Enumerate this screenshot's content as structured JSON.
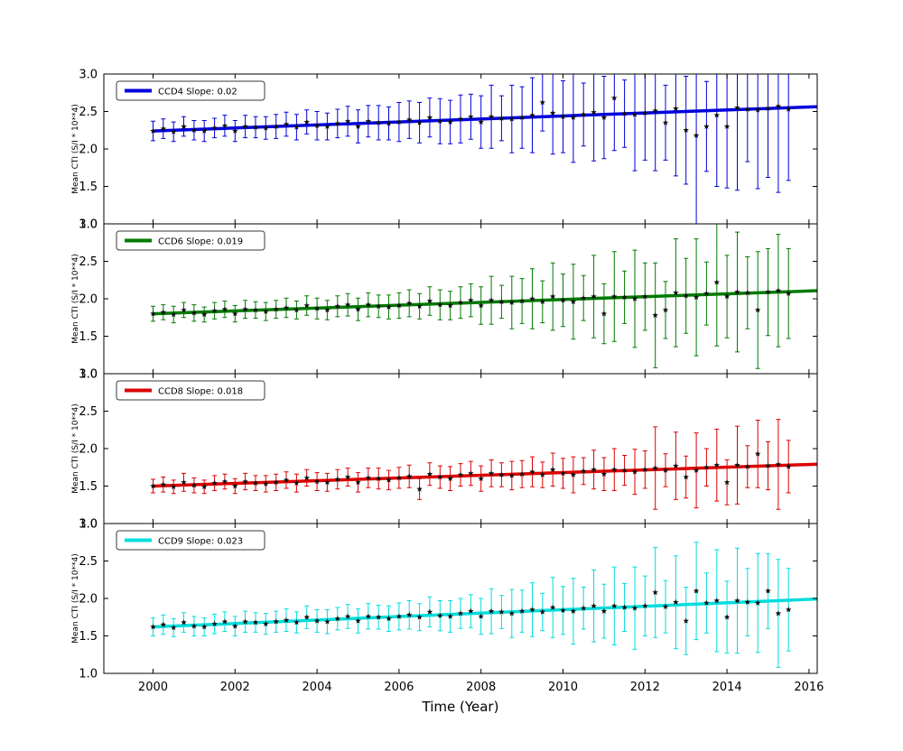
{
  "figure": {
    "xlabel": "Time (Year)",
    "ylabel": "Mean CTI (S/I * 10**4)"
  },
  "chart_data": {
    "type": "line",
    "description": "Four stacked panels of mean CTI vs time with error bars, black star markers and a colored linear fit per CCD",
    "layout": {
      "xlim": [
        1998.8,
        2016.2
      ],
      "ylim": [
        1.0,
        3.0
      ],
      "x_ticks": [
        2000,
        2002,
        2004,
        2006,
        2008,
        2010,
        2012,
        2014,
        2016
      ],
      "x_tick_labels": [
        "2000",
        "2002",
        "2004",
        "2006",
        "2008",
        "2010",
        "2012",
        "2014",
        "2016"
      ],
      "y_ticks": [
        1.0,
        1.5,
        2.0,
        2.5,
        3.0
      ],
      "y_tick_labels": [
        "1.0",
        "1.5",
        "2.0",
        "2.5",
        "3.0"
      ],
      "xlabel": "Time (Year)",
      "ylabel": "Mean CTI (S/I * 10**4)",
      "legend_position": "upper left",
      "grid": false,
      "marker": "black-star",
      "axis_color": "#000000"
    },
    "x": [
      2000.0,
      2000.25,
      2000.5,
      2000.75,
      2001.0,
      2001.25,
      2001.5,
      2001.75,
      2002.0,
      2002.25,
      2002.5,
      2002.75,
      2003.0,
      2003.25,
      2003.5,
      2003.75,
      2004.0,
      2004.25,
      2004.5,
      2004.75,
      2005.0,
      2005.25,
      2005.5,
      2005.75,
      2006.0,
      2006.25,
      2006.5,
      2006.75,
      2007.0,
      2007.25,
      2007.5,
      2007.75,
      2008.0,
      2008.25,
      2008.5,
      2008.75,
      2009.0,
      2009.25,
      2009.5,
      2009.75,
      2010.0,
      2010.25,
      2010.5,
      2010.75,
      2011.0,
      2011.25,
      2011.5,
      2011.75,
      2012.0,
      2012.25,
      2012.5,
      2012.75,
      2013.0,
      2013.25,
      2013.5,
      2013.75,
      2014.0,
      2014.25,
      2014.5,
      2014.75,
      2015.0,
      2015.25,
      2015.5
    ],
    "series": [
      {
        "name": "CCD4",
        "legend_label": "CCD4 Slope: 0.02",
        "slope": 0.02,
        "color": "#0000dd",
        "fit": {
          "x0": 2000,
          "y0": 2.24,
          "slope": 0.02
        },
        "y": [
          2.24,
          2.27,
          2.23,
          2.3,
          2.25,
          2.24,
          2.28,
          2.31,
          2.24,
          2.3,
          2.29,
          2.28,
          2.3,
          2.33,
          2.29,
          2.36,
          2.31,
          2.3,
          2.34,
          2.37,
          2.3,
          2.37,
          2.35,
          2.34,
          2.36,
          2.39,
          2.35,
          2.42,
          2.37,
          2.36,
          2.4,
          2.43,
          2.36,
          2.43,
          2.41,
          2.4,
          2.42,
          2.45,
          2.62,
          2.48,
          2.43,
          2.42,
          2.46,
          2.49,
          2.42,
          2.68,
          2.47,
          2.46,
          2.48,
          2.51,
          2.35,
          2.54,
          2.25,
          2.18,
          2.3,
          2.45,
          2.3,
          2.55,
          2.53,
          2.52,
          2.54,
          2.57,
          2.53
        ],
        "err": [
          0.13,
          0.13,
          0.13,
          0.13,
          0.13,
          0.14,
          0.13,
          0.14,
          0.14,
          0.15,
          0.14,
          0.15,
          0.16,
          0.16,
          0.17,
          0.16,
          0.19,
          0.18,
          0.19,
          0.2,
          0.22,
          0.21,
          0.23,
          0.22,
          0.26,
          0.25,
          0.27,
          0.26,
          0.3,
          0.29,
          0.32,
          0.3,
          0.35,
          0.42,
          0.3,
          0.45,
          0.41,
          0.5,
          0.38,
          0.55,
          0.48,
          0.6,
          0.42,
          0.65,
          0.55,
          0.7,
          0.45,
          0.75,
          0.63,
          0.8,
          0.5,
          0.9,
          0.72,
          1.2,
          0.6,
          0.95,
          0.82,
          1.1,
          0.7,
          1.05,
          0.92,
          1.15,
          0.95
        ]
      },
      {
        "name": "CCD6",
        "legend_label": "CCD6 Slope: 0.019",
        "slope": 0.019,
        "color": "#007a00",
        "fit": {
          "x0": 2000,
          "y0": 1.8,
          "slope": 0.019
        },
        "y": [
          1.8,
          1.82,
          1.79,
          1.85,
          1.81,
          1.79,
          1.84,
          1.86,
          1.8,
          1.86,
          1.85,
          1.83,
          1.86,
          1.88,
          1.85,
          1.91,
          1.87,
          1.85,
          1.9,
          1.92,
          1.86,
          1.92,
          1.9,
          1.89,
          1.91,
          1.94,
          1.9,
          1.97,
          1.92,
          1.91,
          1.95,
          1.98,
          1.91,
          1.98,
          1.96,
          1.95,
          1.97,
          2.0,
          1.96,
          2.03,
          1.98,
          1.96,
          2.01,
          2.03,
          1.8,
          2.03,
          2.02,
          2.0,
          2.03,
          1.78,
          1.85,
          2.08,
          2.04,
          2.02,
          2.07,
          2.22,
          2.03,
          2.09,
          2.08,
          1.85,
          2.09,
          2.11,
          2.07
        ],
        "err": [
          0.1,
          0.1,
          0.11,
          0.1,
          0.11,
          0.1,
          0.11,
          0.11,
          0.11,
          0.12,
          0.11,
          0.12,
          0.12,
          0.13,
          0.12,
          0.13,
          0.14,
          0.13,
          0.14,
          0.15,
          0.15,
          0.16,
          0.15,
          0.16,
          0.17,
          0.18,
          0.17,
          0.19,
          0.2,
          0.19,
          0.21,
          0.22,
          0.25,
          0.32,
          0.22,
          0.35,
          0.3,
          0.4,
          0.28,
          0.45,
          0.35,
          0.5,
          0.3,
          0.55,
          0.4,
          0.6,
          0.35,
          0.65,
          0.45,
          0.7,
          0.38,
          0.72,
          0.5,
          0.78,
          0.42,
          0.85,
          0.55,
          0.8,
          0.48,
          0.78,
          0.58,
          0.75,
          0.6
        ]
      },
      {
        "name": "CCD8",
        "legend_label": "CCD8 Slope: 0.018",
        "slope": 0.018,
        "color": "#dd0000",
        "fit": {
          "x0": 2000,
          "y0": 1.5,
          "slope": 0.018
        },
        "y": [
          1.5,
          1.52,
          1.49,
          1.55,
          1.51,
          1.49,
          1.54,
          1.56,
          1.5,
          1.56,
          1.54,
          1.53,
          1.55,
          1.58,
          1.54,
          1.61,
          1.56,
          1.55,
          1.59,
          1.62,
          1.55,
          1.61,
          1.6,
          1.58,
          1.61,
          1.63,
          1.46,
          1.66,
          1.62,
          1.6,
          1.65,
          1.67,
          1.6,
          1.67,
          1.65,
          1.64,
          1.66,
          1.69,
          1.65,
          1.72,
          1.67,
          1.65,
          1.7,
          1.72,
          1.66,
          1.72,
          1.71,
          1.69,
          1.72,
          1.74,
          1.71,
          1.77,
          1.62,
          1.71,
          1.75,
          1.78,
          1.55,
          1.78,
          1.76,
          1.93,
          1.77,
          1.79,
          1.76
        ],
        "err": [
          0.09,
          0.1,
          0.09,
          0.12,
          0.1,
          0.09,
          0.1,
          0.1,
          0.1,
          0.11,
          0.1,
          0.11,
          0.11,
          0.11,
          0.12,
          0.11,
          0.12,
          0.12,
          0.13,
          0.12,
          0.13,
          0.13,
          0.14,
          0.13,
          0.14,
          0.15,
          0.14,
          0.15,
          0.15,
          0.16,
          0.15,
          0.16,
          0.17,
          0.18,
          0.16,
          0.19,
          0.18,
          0.2,
          0.17,
          0.22,
          0.2,
          0.24,
          0.18,
          0.26,
          0.22,
          0.28,
          0.2,
          0.3,
          0.25,
          0.55,
          0.22,
          0.45,
          0.28,
          0.5,
          0.25,
          0.48,
          0.3,
          0.52,
          0.28,
          0.45,
          0.32,
          0.6,
          0.35
        ]
      },
      {
        "name": "CCD9",
        "legend_label": "CCD9 Slope: 0.023",
        "slope": 0.023,
        "color": "#00dddd",
        "fit": {
          "x0": 2000,
          "y0": 1.62,
          "slope": 0.023
        },
        "y": [
          1.62,
          1.65,
          1.61,
          1.68,
          1.63,
          1.62,
          1.66,
          1.69,
          1.63,
          1.69,
          1.68,
          1.66,
          1.69,
          1.71,
          1.68,
          1.75,
          1.7,
          1.69,
          1.73,
          1.76,
          1.7,
          1.76,
          1.75,
          1.73,
          1.76,
          1.78,
          1.75,
          1.82,
          1.77,
          1.76,
          1.8,
          1.83,
          1.76,
          1.83,
          1.82,
          1.8,
          1.83,
          1.85,
          1.82,
          1.88,
          1.84,
          1.83,
          1.87,
          1.9,
          1.83,
          1.9,
          1.88,
          1.87,
          1.9,
          2.08,
          1.89,
          1.95,
          1.7,
          2.1,
          1.94,
          1.97,
          1.75,
          1.97,
          1.95,
          1.94,
          2.1,
          1.8,
          1.85
        ],
        "err": [
          0.12,
          0.13,
          0.12,
          0.13,
          0.13,
          0.12,
          0.13,
          0.13,
          0.13,
          0.14,
          0.13,
          0.14,
          0.14,
          0.15,
          0.14,
          0.15,
          0.15,
          0.16,
          0.15,
          0.16,
          0.16,
          0.17,
          0.16,
          0.17,
          0.18,
          0.19,
          0.18,
          0.2,
          0.2,
          0.21,
          0.2,
          0.22,
          0.24,
          0.3,
          0.22,
          0.32,
          0.28,
          0.36,
          0.25,
          0.4,
          0.32,
          0.44,
          0.28,
          0.48,
          0.36,
          0.52,
          0.32,
          0.55,
          0.4,
          0.6,
          0.35,
          0.62,
          0.45,
          0.65,
          0.4,
          0.68,
          0.48,
          0.7,
          0.45,
          0.66,
          0.5,
          0.72,
          0.55
        ]
      }
    ]
  }
}
